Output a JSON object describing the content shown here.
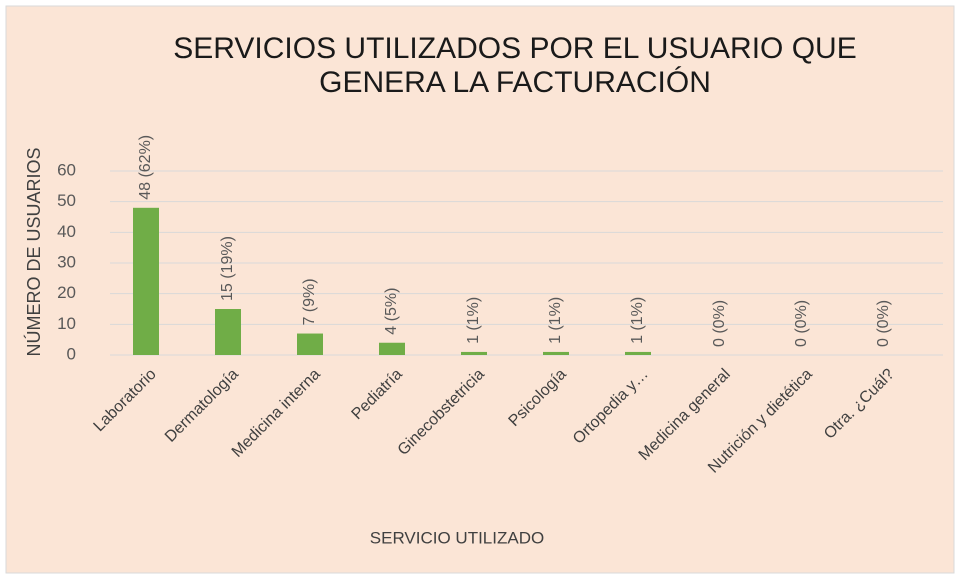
{
  "chart_data": {
    "type": "bar",
    "title": "SERVICIOS UTILIZADOS POR EL USUARIO QUE GENERA LA FACTURACIÓN",
    "x_label": "SERVICIO UTILIZADO",
    "y_label": "NÚMERO DE USUARIOS",
    "categories": [
      "Laboratorio",
      "Dermatología",
      "Medicina interna",
      "Pediatría",
      "Ginecobstetricia",
      "Psicología",
      "Ortopedia y…",
      "Medicina general",
      "Nutrición y dietética",
      "Otra. ¿Cuál?"
    ],
    "values": [
      48,
      15,
      7,
      4,
      1,
      1,
      1,
      0,
      0,
      0
    ],
    "value_labels": [
      "48 (62%)",
      "15 (19%)",
      "7 (9%)",
      "4 (5%)",
      "1 (1%)",
      "1 (1%)",
      "1 (1%)",
      "0 (0%)",
      "0 (0%)",
      "0 (0%)"
    ],
    "color": "#70ad47",
    "ylim": [
      0,
      60
    ],
    "yticks": [
      0,
      10,
      20,
      30,
      40,
      50,
      60
    ],
    "grid": true
  }
}
